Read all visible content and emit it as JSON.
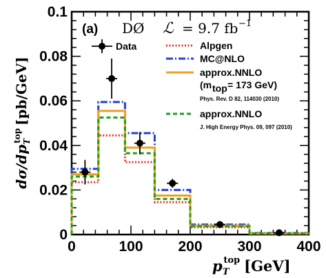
{
  "chart_data": {
    "type": "histogram",
    "panel_label": "(a)",
    "experiment": "DØ",
    "luminosity_symbol": "ℒ",
    "luminosity_value": "= 9.7 fb",
    "luminosity_exp": "−1",
    "xlabel_main": "p",
    "xlabel_sub": "T",
    "xlabel_sup": "top",
    "xlabel_unit": "[GeV]",
    "ylabel_prefix": "dσ/dp",
    "ylabel_sub": "T",
    "ylabel_sup": "top",
    "ylabel_unit": "[pb/GeV]",
    "xlim": [
      0,
      400
    ],
    "ylim": [
      0,
      0.1
    ],
    "x_ticks": [
      "0",
      "100",
      "200",
      "300",
      "400"
    ],
    "y_ticks": [
      "0",
      "0.02",
      "0.04",
      "0.06",
      "0.08",
      "0.1"
    ],
    "bin_edges": [
      0,
      45,
      90,
      140,
      200,
      300,
      400
    ],
    "series": [
      {
        "name": "Alpgen",
        "color": "#e8312a",
        "dash": "dotted",
        "values": [
          0.0235,
          0.0445,
          0.0325,
          0.0145,
          0.0033,
          0.0004
        ]
      },
      {
        "name": "MC@NLO",
        "color": "#1f3fd6",
        "dash": "dashdot",
        "values": [
          0.0295,
          0.0595,
          0.0455,
          0.02,
          0.0045,
          0.0007
        ]
      },
      {
        "name": "approx.NNLO",
        "color": "#f0a020",
        "dash": "solid",
        "values": [
          0.027,
          0.0555,
          0.039,
          0.0175,
          0.004,
          0.0005
        ]
      },
      {
        "name": "approx.NNLO",
        "color": "#1aa01a",
        "dash": "dashed",
        "values": [
          0.026,
          0.0525,
          0.0365,
          0.016,
          0.0037,
          0.0005
        ]
      }
    ],
    "data_series": {
      "name": "Data",
      "points": [
        {
          "x": 22.5,
          "y": 0.028,
          "yerr": 0.0055
        },
        {
          "x": 67.5,
          "y": 0.07,
          "yerr": 0.009
        },
        {
          "x": 115,
          "y": 0.041,
          "yerr": 0.005
        },
        {
          "x": 170,
          "y": 0.023,
          "yerr": 0.002
        },
        {
          "x": 250,
          "y": 0.0045,
          "yerr": 0.0007
        },
        {
          "x": 350,
          "y": 0.0008,
          "yerr": 0.0003
        }
      ]
    },
    "legend_extra": {
      "nnlo_mass": "(m",
      "nnlo_mass_sub": "top",
      "nnlo_mass_val": "= 173 GeV)",
      "ref1": "Phys. Rev. D 82, 114030 (2010)",
      "ref2": "J. High Energy Phys. 09, 097 (2010)"
    }
  }
}
